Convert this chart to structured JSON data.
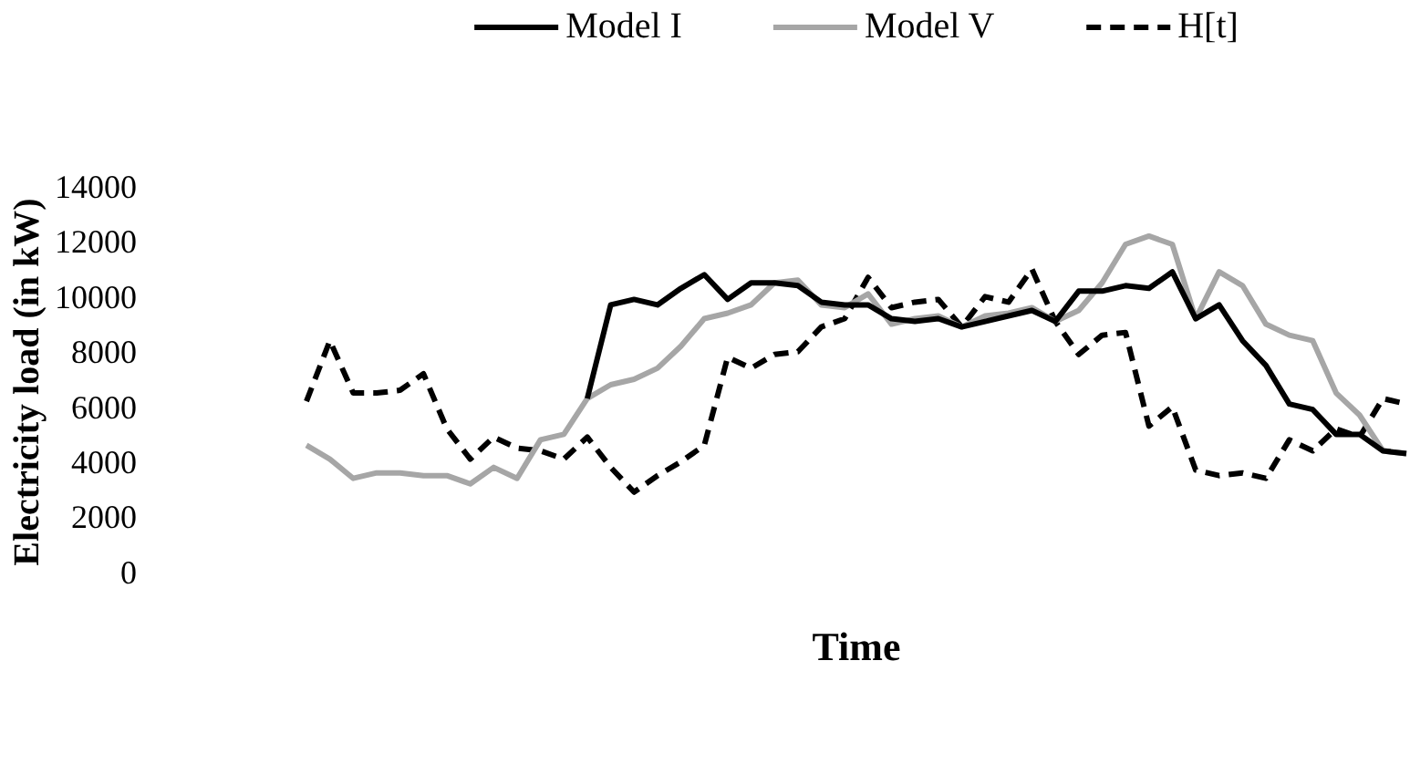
{
  "chart_data": {
    "type": "line",
    "xlabel": "Time",
    "ylabel": "Electricity load (in kW)",
    "categories": [
      null,
      null,
      null,
      null,
      null,
      null,
      null,
      null,
      null,
      null,
      null,
      null,
      null,
      null,
      null,
      null,
      null,
      null,
      null,
      null,
      null,
      null,
      null,
      null,
      null,
      null,
      null,
      null,
      null,
      null,
      null,
      null,
      null,
      null,
      null,
      null,
      null,
      null,
      null,
      null,
      null,
      null,
      null,
      null,
      null,
      null,
      null,
      null
    ],
    "series": [
      {
        "name": "Model I",
        "color": "#000000",
        "line_style": "solid",
        "values": [
          null,
          null,
          null,
          null,
          null,
          null,
          null,
          null,
          null,
          null,
          null,
          null,
          6400,
          9800,
          10000,
          9800,
          10400,
          10900,
          10000,
          10600,
          10600,
          10500,
          9900,
          9800,
          9800,
          9300,
          9200,
          9300,
          9000,
          9200,
          9400,
          9600,
          9200,
          10300,
          10300,
          10500,
          10400,
          11000,
          9300,
          9800,
          8500,
          7600,
          6200,
          6000,
          5100,
          5100,
          4500,
          4400
        ]
      },
      {
        "name": "Model V",
        "color": "#a6a6a6",
        "line_style": "solid",
        "values": [
          4700,
          4200,
          3500,
          3700,
          3700,
          3600,
          3600,
          3300,
          3900,
          3500,
          4900,
          5100,
          6400,
          6900,
          7100,
          7500,
          8300,
          9300,
          9500,
          9800,
          10600,
          10700,
          9800,
          9700,
          10200,
          9100,
          9300,
          9400,
          9000,
          9400,
          9500,
          9700,
          9200,
          9600,
          10600,
          12000,
          12300,
          12000,
          9300,
          11000,
          10500,
          9100,
          8700,
          8500,
          6600,
          5800,
          4500,
          4400
        ]
      },
      {
        "name": "H[t]",
        "color": "#000000",
        "line_style": "dashed",
        "values": [
          6300,
          8500,
          6600,
          6600,
          6700,
          7300,
          5300,
          4200,
          5000,
          4600,
          4500,
          4200,
          5000,
          3900,
          3000,
          3600,
          4100,
          4700,
          7900,
          7500,
          8000,
          8100,
          9000,
          9300,
          10800,
          9700,
          9900,
          10000,
          9000,
          10100,
          9900,
          11100,
          9200,
          8000,
          8700,
          8800,
          5400,
          6100,
          3800,
          3600,
          3700,
          3500,
          4900,
          4500,
          5300,
          5000,
          6400,
          6200
        ]
      }
    ],
    "ylim": [
      0,
      14000
    ],
    "yticks": [
      0,
      2000,
      4000,
      6000,
      8000,
      10000,
      12000,
      14000
    ],
    "legend": "top",
    "tick_labels": "y",
    "marker": "none"
  }
}
